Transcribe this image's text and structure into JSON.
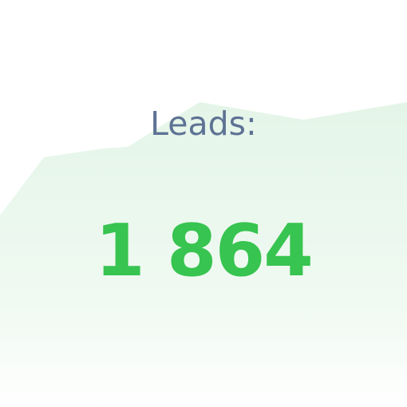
{
  "widget": {
    "label": "Leads:",
    "value": "1 864"
  },
  "colors": {
    "label": "#5e7294",
    "value": "#37c450",
    "area_fill": "#e6f5e9",
    "background": "#ffffff"
  }
}
